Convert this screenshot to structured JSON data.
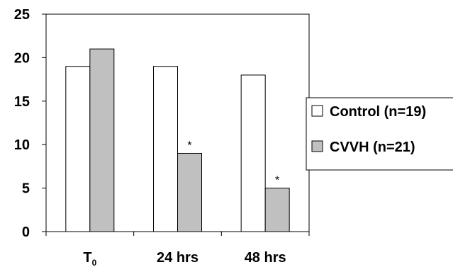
{
  "chart_data": {
    "type": "bar",
    "title": "",
    "xlabel": "",
    "ylabel": "",
    "categories": [
      {
        "main": "T",
        "sub": "0"
      },
      {
        "main": "24 hrs",
        "sub": ""
      },
      {
        "main": "48 hrs",
        "sub": ""
      }
    ],
    "series": [
      {
        "name": "Control (n=19)",
        "color": "#ffffff",
        "values": [
          19,
          19,
          18
        ],
        "annotations": [
          "",
          "",
          ""
        ]
      },
      {
        "name": "CVVH (n=21)",
        "color": "#c0c0c0",
        "values": [
          21,
          9,
          5
        ],
        "annotations": [
          "",
          "*",
          "*"
        ]
      }
    ],
    "ylim": [
      0,
      25
    ],
    "yticks": [
      0,
      5,
      10,
      15,
      20,
      25
    ],
    "grid": false,
    "legend_position": "right"
  }
}
